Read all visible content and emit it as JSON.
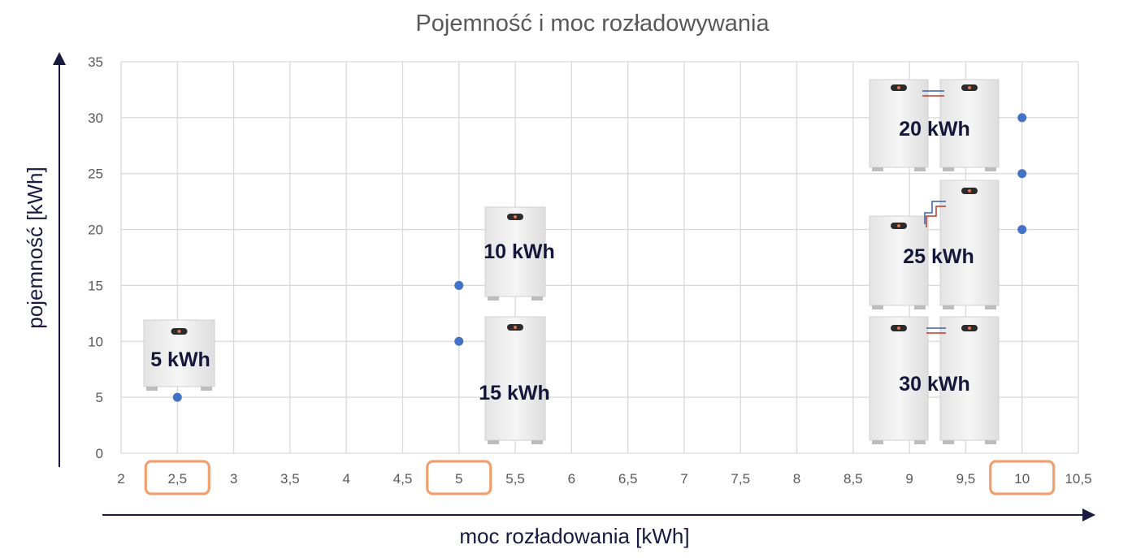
{
  "chart_data": {
    "type": "scatter",
    "title": "Pojemność i moc rozładowywania",
    "xlabel": "moc rozładowania [kWh]",
    "ylabel": "pojemność [kWh]",
    "xlim": [
      2,
      10.5
    ],
    "ylim": [
      0,
      35
    ],
    "x_ticks": [
      "2",
      "2,5",
      "3",
      "3,5",
      "4",
      "4,5",
      "5",
      "5,5",
      "6",
      "6,5",
      "7",
      "7,5",
      "8",
      "8,5",
      "9",
      "9,5",
      "10",
      "10,5"
    ],
    "y_ticks": [
      "0",
      "5",
      "10",
      "15",
      "20",
      "25",
      "30",
      "35"
    ],
    "grid": true,
    "highlighted_x": [
      2.5,
      5,
      10
    ],
    "marker_color": "#4472c4",
    "highlight_color": "#f0a070",
    "points": [
      {
        "x": 2.5,
        "y": 5
      },
      {
        "x": 5,
        "y": 10
      },
      {
        "x": 5,
        "y": 15
      },
      {
        "x": 10,
        "y": 20
      },
      {
        "x": 10,
        "y": 25
      },
      {
        "x": 10,
        "y": 30
      }
    ],
    "battery_labels": [
      "5 kWh",
      "10 kWh",
      "15 kWh",
      "20 kWh",
      "25 kWh",
      "30 kWh"
    ]
  }
}
